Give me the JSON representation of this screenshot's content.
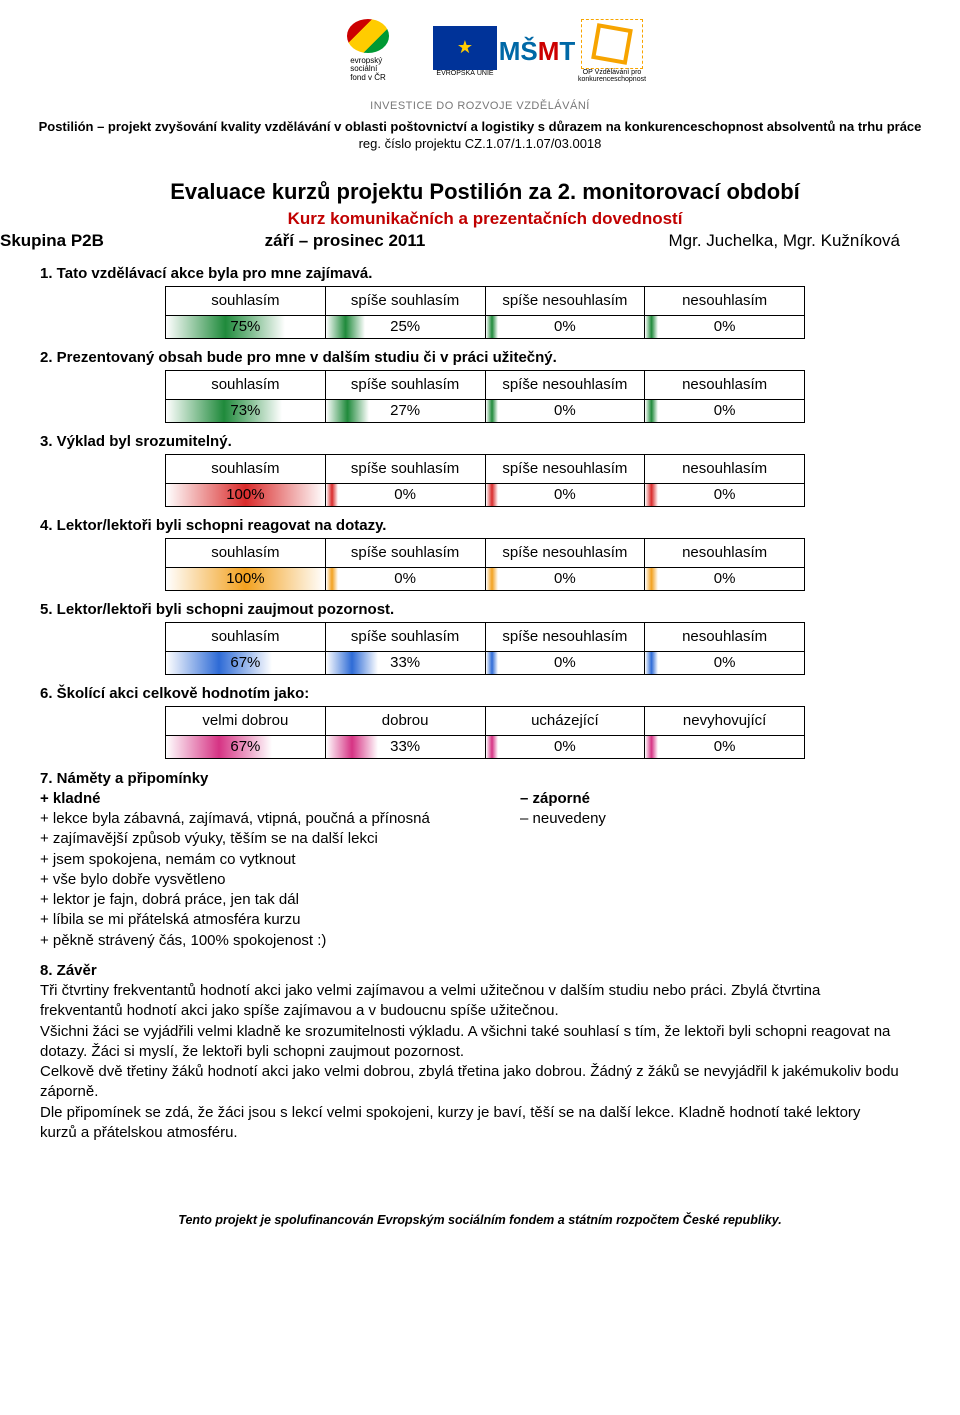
{
  "header": {
    "tagline": "INVESTICE DO ROZVOJE VZDĚLÁVÁNÍ",
    "project_title": "Postilión – projekt zvyšování kvality vzdělávání v oblasti poštovnictví a logistiky s důrazem na konkurenceschopnost absolventů na trhu práce",
    "project_reg": "reg. číslo projektu CZ.1.07/1.1.07/03.0018",
    "esf_text": "evropský\nsociální\nfond v ČR",
    "eu_text": "EVROPSKÁ UNIE",
    "msmt_text": "MŠMT",
    "opvk_text": "OP Vzdělávání pro konkurenceschopnost"
  },
  "title": "Evaluace kurzů projektu Postilión za 2. monitorovací období",
  "subtitle": "Kurz komunikačních a prezentačních dovedností",
  "group": "Skupina P2B",
  "period": "září – prosinec 2011",
  "teachers": "Mgr. Juchelka, Mgr. Kužníková",
  "option_labels": [
    "souhlasím",
    "spíše souhlasím",
    "spíše nesouhlasím",
    "nesouhlasím"
  ],
  "option_labels_q6": [
    "velmi dobrou",
    "dobrou",
    "ucházející",
    "nevyhovující"
  ],
  "questions": [
    {
      "text": "1. Tato vzdělávací akce byla pro mne zajímavá.",
      "values": [
        75,
        25,
        0,
        0
      ],
      "gradient": [
        "#ffffff",
        "#1f8a3b",
        "#ffffff"
      ]
    },
    {
      "text": "2. Prezentovaný obsah bude pro mne v dalším studiu či v práci užitečný.",
      "values": [
        73,
        27,
        0,
        0
      ],
      "gradient": [
        "#ffffff",
        "#1f8a3b",
        "#ffffff"
      ]
    },
    {
      "text": "3. Výklad byl srozumitelný.",
      "values": [
        100,
        0,
        0,
        0
      ],
      "gradient": [
        "#ffffff",
        "#d92b2b",
        "#ffffff"
      ]
    },
    {
      "text": "4. Lektor/lektoři byli schopni reagovat na dotazy.",
      "values": [
        100,
        0,
        0,
        0
      ],
      "gradient": [
        "#ffffff",
        "#f2a11f",
        "#ffffff"
      ]
    },
    {
      "text": "5. Lektor/lektoři byli schopni zaujmout pozornost.",
      "values": [
        67,
        33,
        0,
        0
      ],
      "gradient": [
        "#ffffff",
        "#2e6bd6",
        "#ffffff"
      ]
    },
    {
      "text": "6. Školící akci celkově hodnotím jako:",
      "values": [
        67,
        33,
        0,
        0
      ],
      "gradient": [
        "#ffffff",
        "#d63384",
        "#ffffff"
      ],
      "labels_override": true
    }
  ],
  "comments": {
    "heading": "7. Náměty a připomínky",
    "pos_label": "+ kladné",
    "neg_label": "– záporné",
    "neg_text": "– neuvedeny",
    "positives": [
      "+ lekce byla zábavná, zajímavá, vtipná, poučná a přínosná",
      "+ zajímavější způsob výuky, těším se na další lekci",
      "+ jsem spokojena, nemám co vytknout",
      "+ vše bylo dobře vysvětleno",
      "+ lektor je fajn, dobrá práce, jen tak dál",
      "+ líbila se mi přátelská atmosféra kurzu",
      "+ pěkně strávený čás, 100% spokojenost    :)"
    ]
  },
  "conclusion": {
    "heading": "8. Závěr",
    "body": "Tři čtvrtiny frekventantů hodnotí akci jako velmi zajímavou a velmi užitečnou v dalším studiu nebo práci. Zbylá čtvrtina frekventantů hodnotí akci jako spíše zajímavou a v budoucnu spíše užitečnou.\nVšichni žáci se vyjádřili velmi kladně ke srozumitelnosti výkladu. A všichni také souhlasí s tím, že lektoři byli schopni reagovat na dotazy. Žáci si myslí, že lektoři byli schopni zaujmout pozornost.\nCelkově dvě třetiny žáků hodnotí akci jako velmi dobrou, zbylá třetina jako dobrou. Žádný z žáků se nevyjádřil k jakémukoliv bodu záporně.\nDle připomínek se zdá, že žáci jsou s lekcí velmi spokojeni, kurzy je baví, těší se na další lekce. Kladně hodnotí také lektory kurzů a přátelskou atmosféru."
  },
  "footer": "Tento projekt je spolufinancován Evropským sociálním fondem a státním rozpočtem České republiky."
}
